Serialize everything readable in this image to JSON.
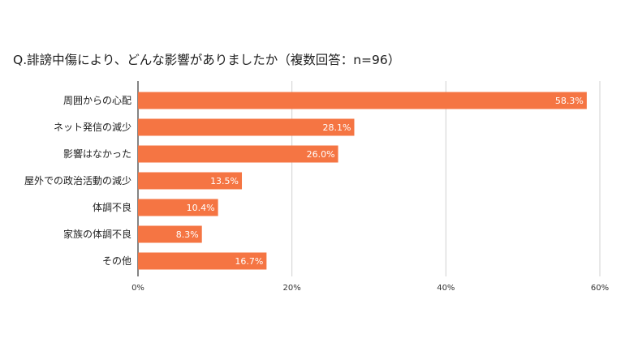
{
  "title": "Q.誹謗中傷により、どんな影響がありましたか（複数回答：n=96）",
  "colors": {
    "bar": "#f57543",
    "grid": "#d0d0d0",
    "axis": "#333333"
  },
  "chart_data": {
    "type": "bar",
    "orientation": "horizontal",
    "title": "Q.誹謗中傷により、どんな影響がありましたか（複数回答：n=96）",
    "categories": [
      "周囲からの心配",
      "ネット発信の減少",
      "影響はなかった",
      "屋外での政治活動の減少",
      "体調不良",
      "家族の体調不良",
      "その他"
    ],
    "values": [
      58.3,
      28.1,
      26.0,
      13.5,
      10.4,
      8.3,
      16.7
    ],
    "value_labels": [
      "58.3%",
      "28.1%",
      "26.0%",
      "13.5%",
      "10.4%",
      "8.3%",
      "16.7%"
    ],
    "xlim": [
      0,
      60
    ],
    "xticks": [
      0,
      20,
      40,
      60
    ],
    "xtick_labels": [
      "0%",
      "20%",
      "40%",
      "60%"
    ],
    "grid": true,
    "legend": "none",
    "xlabel": "",
    "ylabel": ""
  }
}
